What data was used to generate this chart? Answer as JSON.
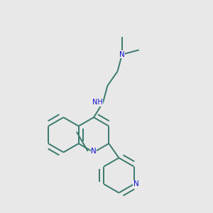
{
  "bg_color": "#e8e8e8",
  "bond_color": "#3a7a6e",
  "n_color": "#1010cc",
  "lw": 1.4,
  "dbo": 0.012,
  "figsize": [
    3.0,
    3.0
  ],
  "dpi": 100
}
